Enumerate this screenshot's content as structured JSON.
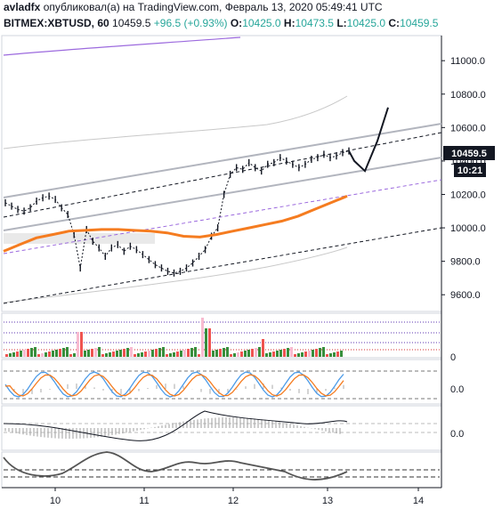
{
  "header": {
    "author": "avladfx",
    "published_text": "опубликовал(а) на TradingView.com, Февраль 13, 2020 05:49:41 UTC",
    "symbol": "BITMEX:XBTUSD, 60",
    "last": "10459.5",
    "change": "+96.5 (+0.93%)",
    "open_label": "O:",
    "open": "10425.0",
    "high_label": "H:",
    "high": "10473.5",
    "low_label": "L:",
    "low": "10425.0",
    "close_label": "C:",
    "close": "10459.5"
  },
  "price_badge": "10459.5",
  "time_badge": "10:21",
  "colors": {
    "up": "#26a69a",
    "down": "#ef5350",
    "ma": "#f57c20",
    "channel": "#b2b5be",
    "stoch_k": "#4c9be8",
    "stoch_d": "#f57c20",
    "badge": "#131722"
  },
  "chart_data": {
    "type": "line",
    "main": {
      "price_axis_ticks": [
        "11000.0",
        "10800.0",
        "10600.0",
        "10400.0",
        "10200.0",
        "10000.0",
        "9800.0",
        "9600.0"
      ],
      "ylim": [
        9500,
        11150
      ],
      "x_labels": [
        "10",
        "11",
        "12",
        "13",
        "14"
      ],
      "price_path": [
        10150,
        10130,
        10110,
        10100,
        10120,
        10160,
        10180,
        10190,
        10170,
        10120,
        10080,
        9960,
        9760,
        9990,
        9920,
        9880,
        9830,
        9880,
        9900,
        9860,
        9890,
        9870,
        9840,
        9810,
        9780,
        9760,
        9740,
        9730,
        9740,
        9760,
        9790,
        9830,
        9870,
        9950,
        10000,
        10200,
        10320,
        10360,
        10350,
        10390,
        10360,
        10340,
        10380,
        10390,
        10420,
        10400,
        10380,
        10360,
        10380,
        10410,
        10420,
        10440,
        10420,
        10430,
        10450,
        10460
      ],
      "ma_path": [
        9860,
        9900,
        9940,
        9960,
        9980,
        9985,
        9990,
        9990,
        9985,
        9980,
        9970,
        9950,
        9945,
        9960,
        9980,
        10000,
        10020,
        10040,
        10070,
        10110,
        10150,
        10190
      ],
      "projection_path": [
        10459.5,
        10400,
        10340,
        10520,
        10720
      ]
    },
    "volume_panel": {
      "label": "0"
    },
    "stoch_panel": {
      "label": "0.0"
    },
    "macd_panel": {
      "label": "0.0"
    }
  }
}
